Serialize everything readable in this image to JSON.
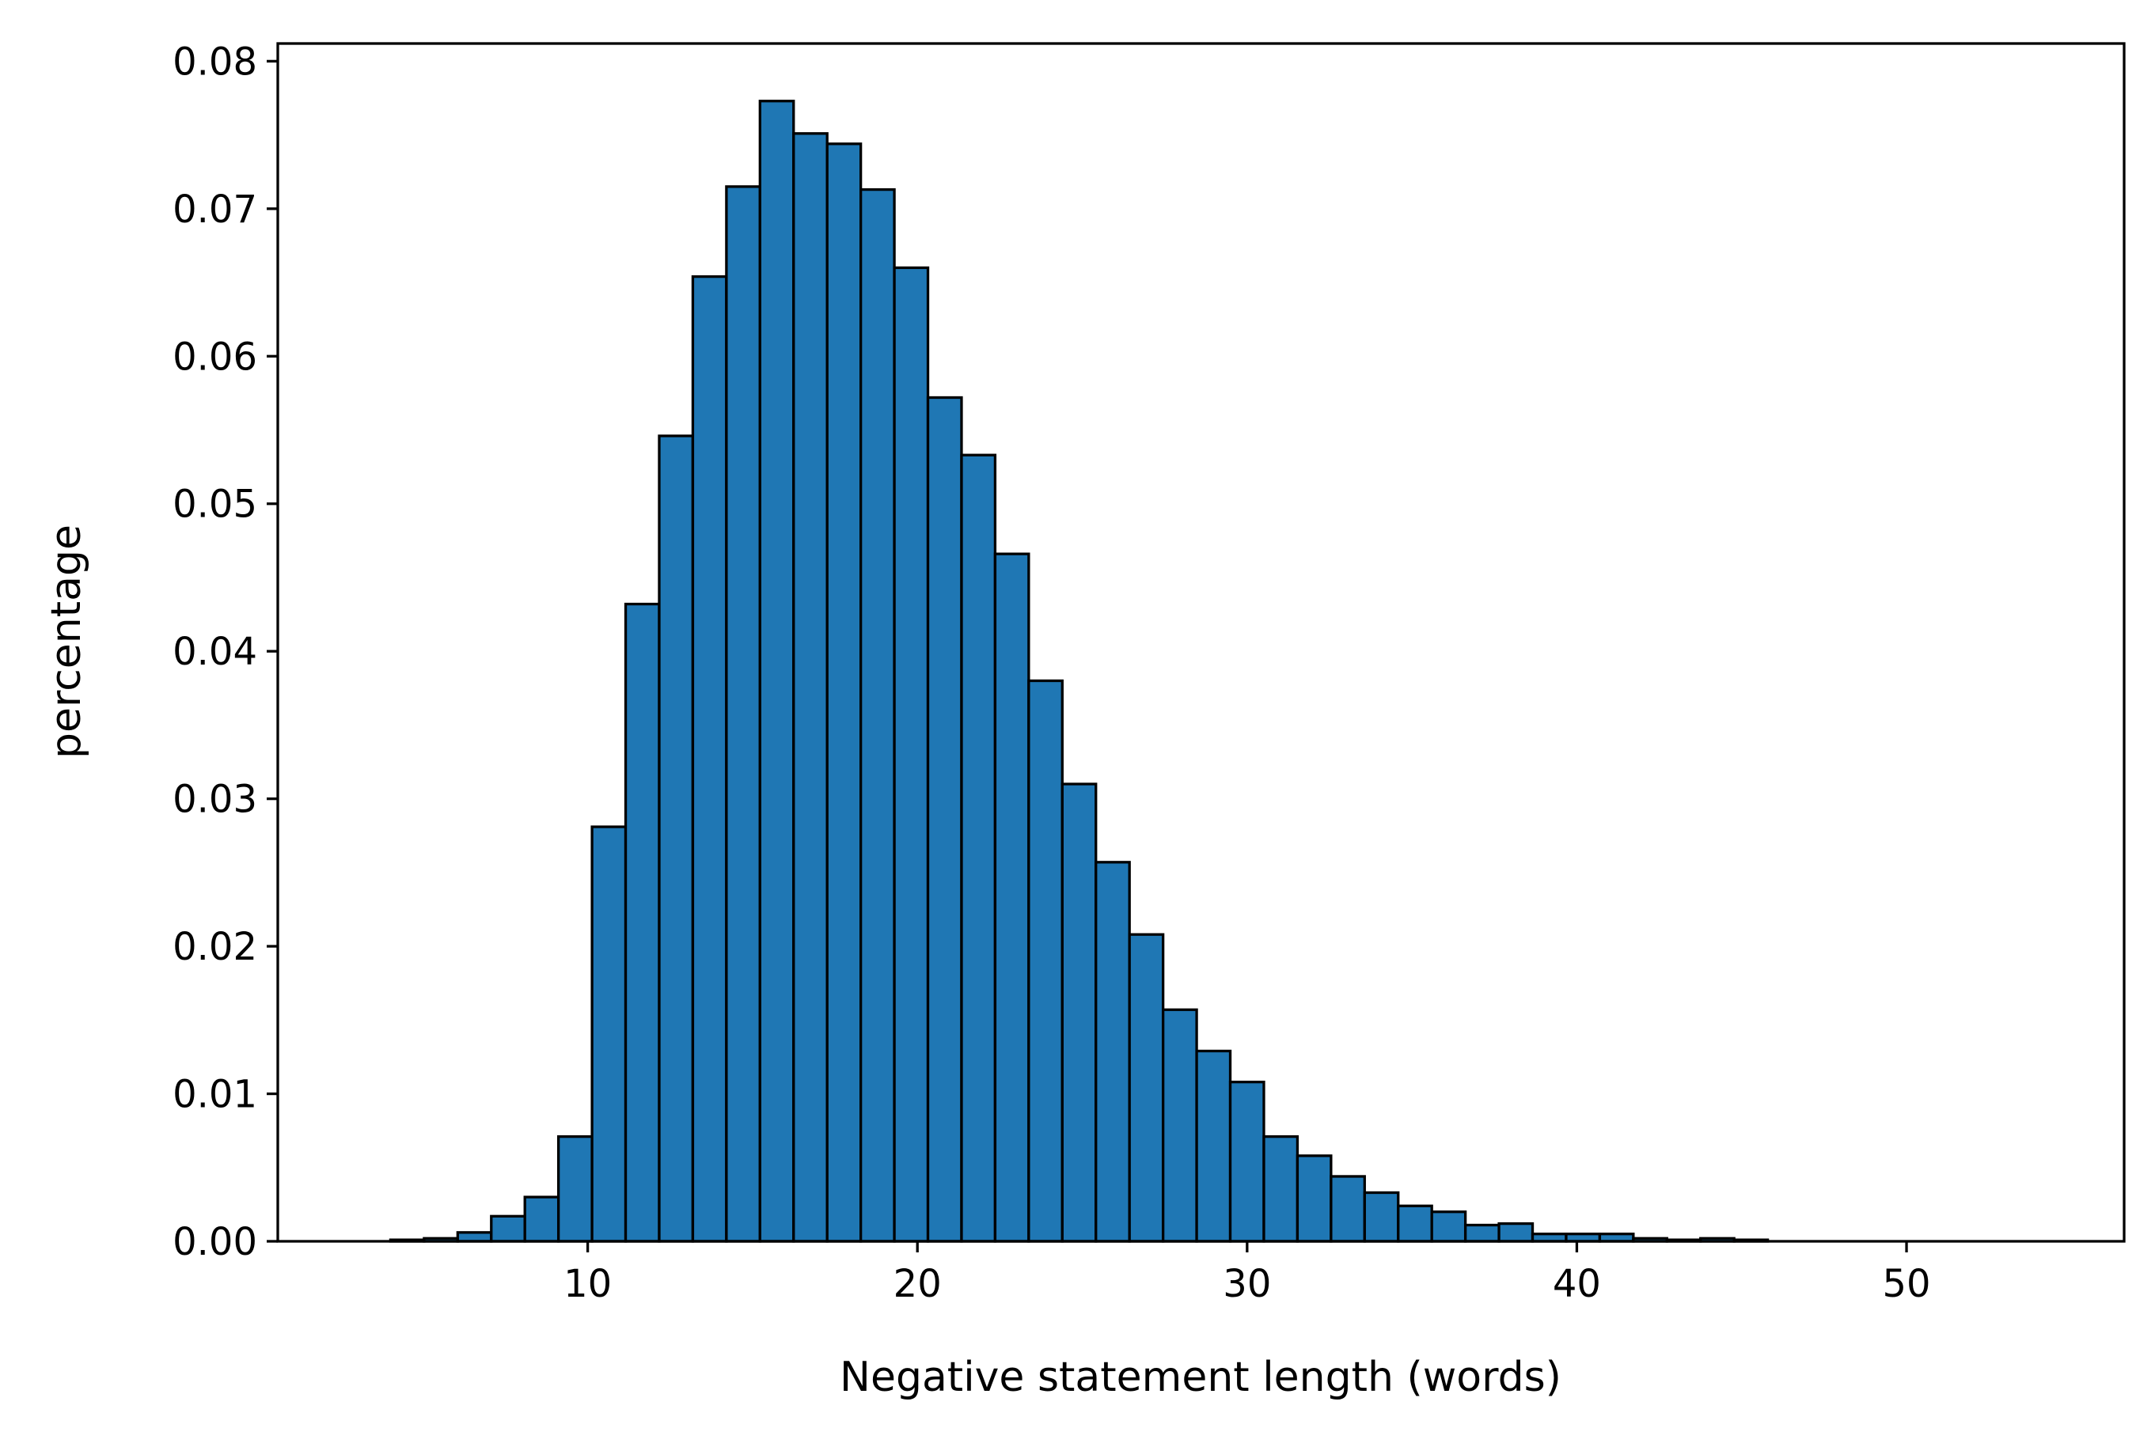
{
  "chart_data": {
    "type": "bar",
    "title": "",
    "xlabel": "Negative statement length (words)",
    "ylabel": "percentage",
    "xlim": [
      0.6,
      56.6
    ],
    "ylim": [
      0,
      0.0812
    ],
    "xticks": [
      10,
      20,
      30,
      40,
      50
    ],
    "yticks": [
      0.0,
      0.01,
      0.02,
      0.03,
      0.04,
      0.05,
      0.06,
      0.07,
      0.08
    ],
    "xtick_labels": [
      "10",
      "20",
      "30",
      "40",
      "50"
    ],
    "ytick_labels": [
      "0.00",
      "0.01",
      "0.02",
      "0.03",
      "0.04",
      "0.05",
      "0.06",
      "0.07",
      "0.08"
    ],
    "grid": false,
    "legend": "none",
    "bar_color": "#1f77b4",
    "edge_color": "#000000",
    "bin_start": 3.0,
    "bin_width": 1.0188,
    "values": [
      0.0,
      0.0001,
      0.0002,
      0.0006,
      0.0017,
      0.003,
      0.0071,
      0.0281,
      0.0432,
      0.0546,
      0.0654,
      0.0715,
      0.0773,
      0.0751,
      0.0744,
      0.0713,
      0.066,
      0.0572,
      0.0533,
      0.0466,
      0.038,
      0.031,
      0.0257,
      0.0208,
      0.0157,
      0.0129,
      0.0108,
      0.0071,
      0.0058,
      0.0044,
      0.0033,
      0.0024,
      0.002,
      0.0011,
      0.0012,
      0.0005,
      0.0005,
      0.0005,
      0.0002,
      0.0001,
      0.0002,
      0.0001,
      0.0,
      0.0,
      0.0,
      0.0,
      0.0,
      0.0,
      0.0,
      0.0
    ]
  }
}
